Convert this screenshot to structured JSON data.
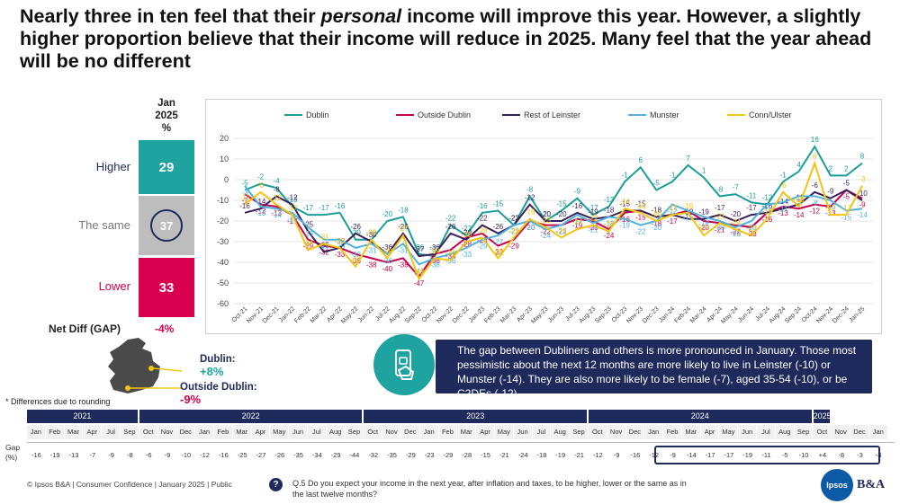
{
  "title": {
    "part1": "Nearly three in ten feel that their ",
    "emph": "personal",
    "part2": " income will improve this year. However, a slightly higher proportion believe that their income will reduce in 2025. Many feel that the year ahead will be no different"
  },
  "kpi": {
    "header_line1": "Jan",
    "header_line2": "2025",
    "header_line3": "%",
    "rows": [
      {
        "label": "Higher",
        "value": "29",
        "color": "#1fa3a1",
        "label_color": "#1f2a5c"
      },
      {
        "label": "The same",
        "value": "37",
        "color": "#bdbdbd",
        "label_color": "#777777"
      },
      {
        "label": "Lower",
        "value": "33",
        "color": "#d8004f",
        "label_color": "#d8004f"
      }
    ],
    "net_label": "Net Diff (GAP)",
    "net_value": "-4%"
  },
  "dublin_gap": {
    "dublin_label": "Dublin:",
    "dublin_value": "+8%",
    "outside_label": "Outside Dublin:",
    "outside_value": "-9%"
  },
  "callout": {
    "text": "The gap between Dubliners and others is more pronounced in January. Those most pessimistic about the next 12 months  are more likely to live in Leinster (-10) or Munster (-14). They are also more likely to be female (-7), aged 35-54 (-10), or be C2DEs (-12).",
    "icon": "phone-hand-icon"
  },
  "footnote": "* Differences due to rounding",
  "gap_table": {
    "row_label": "Gap (%)",
    "years": [
      {
        "label": "2021",
        "span": 6
      },
      {
        "label": "2022",
        "span": 12
      },
      {
        "label": "2023",
        "span": 12
      },
      {
        "label": "2024",
        "span": 12
      },
      {
        "label": "2025",
        "span": 1
      }
    ],
    "months": [
      "Jan",
      "Feb",
      "Mar",
      "Apr",
      "Jul",
      "Sep",
      "Oct",
      "Nov",
      "Dec",
      "Jan",
      "Feb",
      "Mar",
      "Apr",
      "May",
      "Jun",
      "Jul",
      "Aug",
      "Sep",
      "Oct",
      "Nov",
      "Dec",
      "Jan",
      "Feb",
      "Mar",
      "Apr",
      "May",
      "Jun",
      "Jul",
      "Aug",
      "Sep",
      "Oct",
      "Nov",
      "Dec",
      "Jan",
      "Feb",
      "Mar",
      "Apr",
      "May",
      "Jun",
      "Jul",
      "Aug",
      "Sep",
      "Oct",
      "Nov",
      "Dec",
      "Jan"
    ],
    "values": [
      "-16",
      "-19",
      "-13",
      "-7",
      "-9",
      "-8",
      "-6",
      "-9",
      "-10",
      "-12",
      "-16",
      "-25",
      "-27",
      "-26",
      "-35",
      "-34",
      "-29",
      "-44",
      "-32",
      "-35",
      "-29",
      "-23",
      "-29",
      "-28",
      "-15",
      "-21",
      "-24",
      "-18",
      "-19",
      "-21",
      "-12",
      "-9",
      "-16",
      "-12",
      "-9",
      "-14",
      "-17",
      "-17",
      "-19",
      "-11",
      "-5",
      "-10",
      "+4",
      "-8",
      "-3",
      "-4"
    ]
  },
  "copyright": "© Ipsos B&A | Consumer Confidence | January 2025 |  Public",
  "question": "Q.5  Do you expect your income in the next year, after inflation and taxes, to be higher, lower or the same as in the last twelve months?",
  "logo": {
    "ipsos": "Ipsos",
    "ba": "B&A"
  },
  "chart_data": {
    "type": "line",
    "x": [
      "Oct-21",
      "Nov-21",
      "Dec-21",
      "Jan-22",
      "Feb-22",
      "Mar-22",
      "Apr-22",
      "May-22",
      "Jun-22",
      "Jul-22",
      "Aug-22",
      "Sep-22",
      "Oct-22",
      "Nov-22",
      "Dec-22",
      "Jan-23",
      "Feb-23",
      "Mar-23",
      "Apr-23",
      "May-23",
      "Jun-23",
      "Jul-23",
      "Aug-23",
      "Sep-23",
      "Oct-23",
      "Nov-23",
      "Dec-23",
      "Jan-24",
      "Feb-24",
      "Mar-24",
      "Apr-24",
      "May-24",
      "Jun-24",
      "Jul-24",
      "Aug-24",
      "Sep-24",
      "Oct-24",
      "Nov-24",
      "Dec-24",
      "Jan-25"
    ],
    "ylim": [
      -60,
      20
    ],
    "yticks": [
      20,
      10,
      0,
      -10,
      -20,
      -30,
      -40,
      -50,
      -60
    ],
    "grid": true,
    "legend": "top",
    "series": [
      {
        "name": "Dublin",
        "color": "#1b9e9a",
        "values": [
          -5,
          -2,
          -4,
          -13,
          -17,
          -17,
          -16,
          -29,
          -29,
          -20,
          -18,
          -36,
          -37,
          -22,
          -27,
          -16,
          -15,
          -22,
          -8,
          -20,
          -15,
          -9,
          -17,
          -13,
          -1,
          6,
          -5,
          -1,
          7,
          1,
          -8,
          -7,
          -11,
          -12,
          -1,
          4,
          16,
          2,
          2,
          8
        ]
      },
      {
        "name": "Outside Dublin",
        "color": "#c8004a",
        "values": [
          -7,
          -12,
          -13,
          -17,
          -29,
          -32,
          -33,
          -36,
          -38,
          -40,
          -38,
          -47,
          -36,
          -34,
          -28,
          -26,
          -32,
          -29,
          -20,
          -22,
          -22,
          -19,
          -20,
          -24,
          -16,
          -15,
          -18,
          -17,
          -15,
          -20,
          -21,
          -22,
          -23,
          -16,
          -13,
          -14,
          -12,
          -13,
          -5,
          -9
        ]
      },
      {
        "name": "Rest of Leinster",
        "color": "#3b1f5a",
        "values": [
          -16,
          -14,
          -8,
          -12,
          -25,
          -35,
          -33,
          -26,
          -30,
          -36,
          -26,
          -37,
          -36,
          -26,
          -29,
          -22,
          -26,
          -22,
          -12,
          -20,
          -20,
          -16,
          -19,
          -18,
          -15,
          -15,
          -18,
          -17,
          -19,
          -19,
          -17,
          -20,
          -17,
          -16,
          -14,
          -12,
          -6,
          -9,
          -5,
          -10
        ]
      },
      {
        "name": "Munster",
        "color": "#4fb3e0",
        "values": [
          -3,
          -13,
          -14,
          -16,
          -23,
          -29,
          -29,
          -33,
          -31,
          -36,
          -31,
          -41,
          -38,
          -36,
          -33,
          -29,
          -27,
          -22,
          -20,
          -24,
          -22,
          -17,
          -21,
          -18,
          -19,
          -22,
          -20,
          -12,
          -15,
          -18,
          -20,
          -23,
          -20,
          -12,
          -11,
          -8,
          -8,
          -10,
          -15,
          -14
        ]
      },
      {
        "name": "Conn/Ulster",
        "color": "#f2c511",
        "values": [
          -12,
          -6,
          -12,
          -17,
          -34,
          -31,
          -33,
          -42,
          -29,
          -38,
          -27,
          -48,
          -38,
          -39,
          -30,
          -28,
          -38,
          -28,
          -19,
          -23,
          -28,
          -24,
          -22,
          -25,
          -14,
          -16,
          -20,
          -17,
          -16,
          -27,
          -21,
          -24,
          -27,
          -19,
          -6,
          -13,
          8,
          -17,
          -17,
          -3
        ]
      }
    ]
  }
}
